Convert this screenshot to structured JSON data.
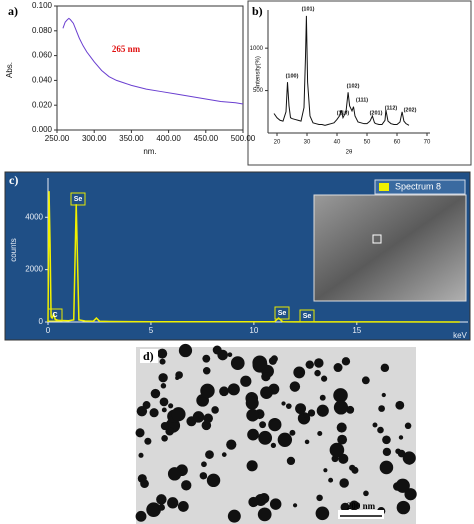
{
  "chart_data": [
    {
      "type": "line",
      "label": "a)",
      "annotation": "265 nm",
      "xlabel": "nm.",
      "ylabel": "Abs.",
      "x": [
        258,
        261,
        264,
        266,
        268,
        272,
        276,
        280,
        285,
        290,
        295,
        300,
        310,
        320,
        330,
        340,
        350,
        370,
        390,
        410,
        430,
        450,
        470,
        490,
        500
      ],
      "series": [
        {
          "color": "#6a3fd0",
          "values": [
            0.082,
            0.087,
            0.089,
            0.09,
            0.089,
            0.086,
            0.08,
            0.074,
            0.068,
            0.063,
            0.059,
            0.055,
            0.048,
            0.043,
            0.04,
            0.038,
            0.036,
            0.033,
            0.031,
            0.029,
            0.027,
            0.025,
            0.023,
            0.022,
            0.021
          ]
        }
      ],
      "xlim": [
        250,
        500
      ],
      "xticks": [
        {
          "value": 250,
          "label": "250.00"
        },
        {
          "value": 300,
          "label": "300.00"
        },
        {
          "value": 350,
          "label": "350.00"
        },
        {
          "value": 400,
          "label": "400.00"
        },
        {
          "value": 450,
          "label": "450.00"
        },
        {
          "value": 500,
          "label": "500.00"
        }
      ],
      "ylim": [
        0,
        0.1
      ],
      "yticks": [
        {
          "value": 0,
          "label": "0.000"
        },
        {
          "value": 0.02,
          "label": "0.020"
        },
        {
          "value": 0.04,
          "label": "0.040"
        },
        {
          "value": 0.06,
          "label": "0.060"
        },
        {
          "value": 0.08,
          "label": "0.080"
        },
        {
          "value": 0.1,
          "label": "0.100"
        }
      ]
    },
    {
      "type": "line",
      "label": "b)",
      "xlabel": "2θ",
      "ylabel": "Intensity(%)",
      "peak_labels": [
        "(100)",
        "(101)",
        "(110)",
        "(102)",
        "(111)",
        "(201)",
        "(112)",
        "(202)"
      ],
      "x": [
        19,
        20,
        21,
        22,
        23,
        23.5,
        24,
        24.5,
        25,
        26,
        27,
        28,
        29,
        29.5,
        29.8,
        30.2,
        31,
        32,
        33,
        34,
        35,
        36,
        37,
        38,
        39,
        40,
        41,
        41.4,
        42,
        43,
        43.7,
        44.2,
        45,
        45.5,
        46,
        47,
        48,
        49,
        50,
        51,
        51.8,
        52.5,
        53,
        54,
        55,
        56,
        56.3,
        57,
        58,
        59,
        60,
        61,
        61.7,
        62.3,
        63,
        64
      ],
      "series": [
        {
          "color": "#111111",
          "values": [
            230,
            180,
            150,
            140,
            250,
            600,
            320,
            180,
            170,
            160,
            150,
            140,
            300,
            900,
            1380,
            600,
            200,
            120,
            110,
            100,
            100,
            90,
            100,
            110,
            120,
            160,
            210,
            270,
            180,
            250,
            480,
            320,
            260,
            310,
            200,
            130,
            120,
            110,
            110,
            140,
            200,
            120,
            110,
            100,
            100,
            150,
            270,
            140,
            110,
            100,
            100,
            130,
            250,
            140,
            110,
            90
          ]
        }
      ],
      "xlim": [
        17,
        71
      ],
      "xticks": [
        20,
        30,
        40,
        50,
        60,
        70
      ],
      "ylim": [
        0,
        1450
      ],
      "yticks": [
        500,
        1000
      ]
    },
    {
      "type": "line",
      "label": "c)",
      "xlabel": "keV",
      "ylabel": "counts",
      "peak_labels": [
        "Se",
        "C",
        "Se",
        "Se"
      ],
      "x": [
        0,
        0.05,
        0.1,
        0.15,
        0.2,
        0.28,
        0.35,
        0.5,
        1.0,
        1.25,
        1.37,
        1.5,
        1.8,
        2.2,
        2.35,
        2.5,
        3,
        5,
        8,
        11.0,
        11.2,
        11.4,
        12,
        15,
        20
      ],
      "series": [
        {
          "name": "Spectrum 8",
          "color": "#f0f000",
          "values": [
            0,
            5000,
            3000,
            200,
            150,
            300,
            100,
            60,
            50,
            80,
            4500,
            80,
            40,
            30,
            150,
            30,
            20,
            10,
            10,
            10,
            150,
            10,
            5,
            5,
            0
          ]
        }
      ],
      "xlim": [
        0,
        20.4
      ],
      "xticks": [
        0,
        5,
        10,
        15
      ],
      "ylim": [
        0,
        5500
      ],
      "yticks": [
        0,
        2000,
        4000
      ]
    }
  ],
  "image": {
    "label": "d)",
    "scale_bar": "200 nm"
  }
}
